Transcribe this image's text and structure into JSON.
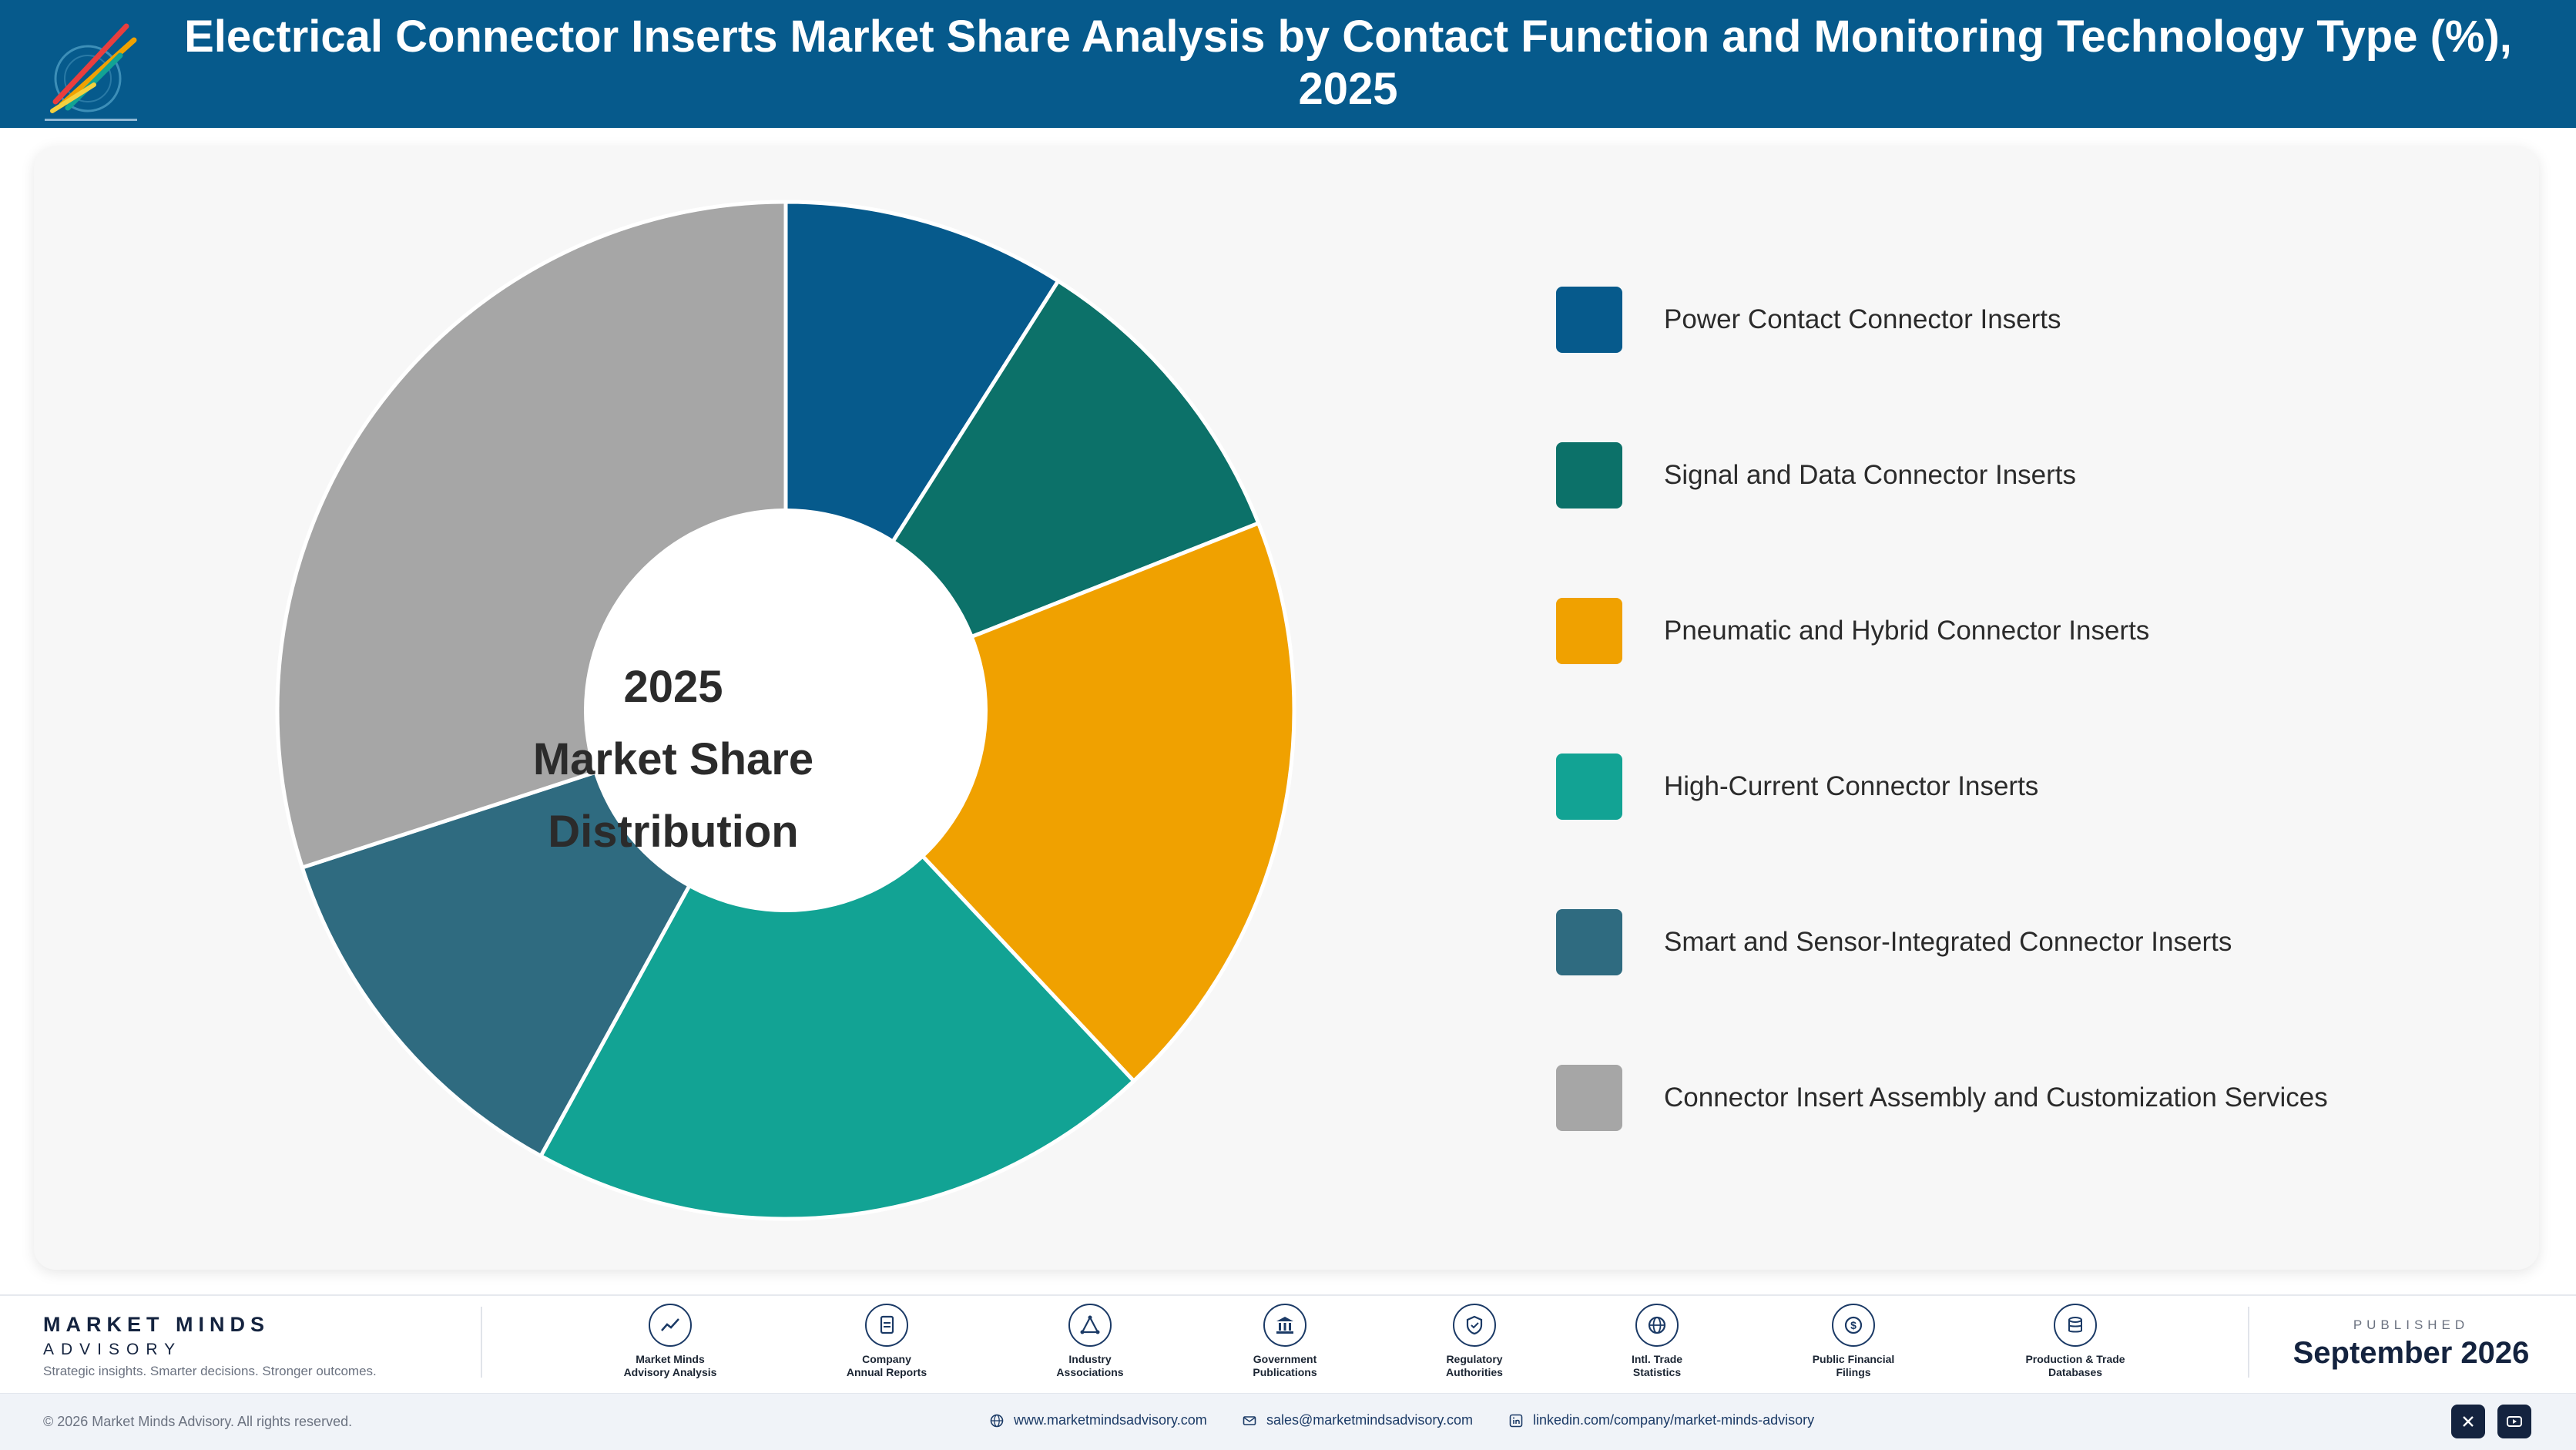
{
  "header": {
    "title": "Electrical Connector Inserts Market Share Analysis by Contact Function and Monitoring Technology Type (%), 2025"
  },
  "chart_data": {
    "type": "pie",
    "title": "Electrical Connector Inserts Market Share Analysis by Contact Function and Monitoring Technology Type (%), 2025",
    "center_label": [
      "2025",
      "Market Share",
      "Distribution"
    ],
    "categories": [
      "Power Contact Connector Inserts",
      "Signal and Data Connector Inserts",
      "Pneumatic and Hybrid Connector Inserts",
      "High-Current Connector Inserts",
      "Smart and Sensor-Integrated Connector Inserts",
      "Connector Insert Assembly and Customization Services"
    ],
    "values": [
      9,
      10,
      19,
      20,
      12,
      30
    ],
    "colors": [
      "#065a8c",
      "#0c7169",
      "#f0a100",
      "#12a394",
      "#2f6b80",
      "#a6a6a6"
    ],
    "donut": true,
    "legend_position": "right"
  },
  "footer": {
    "brand_name": "MARKET MINDS",
    "brand_sub": "ADVISORY",
    "tagline": "Strategic insights. Smarter decisions. Stronger outcomes.",
    "sources": [
      {
        "label1": "Market Minds",
        "label2": "Advisory Analysis",
        "icon": "trend-icon"
      },
      {
        "label1": "Company",
        "label2": "Annual Reports",
        "icon": "document-icon"
      },
      {
        "label1": "Industry",
        "label2": "Associations",
        "icon": "network-icon"
      },
      {
        "label1": "Government",
        "label2": "Publications",
        "icon": "building-icon"
      },
      {
        "label1": "Regulatory",
        "label2": "Authorities",
        "icon": "shield-icon"
      },
      {
        "label1": "Intl. Trade",
        "label2": "Statistics",
        "icon": "globe-icon"
      },
      {
        "label1": "Public Financial",
        "label2": "Filings",
        "icon": "dollar-icon"
      },
      {
        "label1": "Production & Trade",
        "label2": "Databases",
        "icon": "database-icon"
      }
    ],
    "published_label": "PUBLISHED",
    "published_date": "September 2026"
  },
  "bottom_bar": {
    "copyright": "© 2026 Market Minds Advisory. All rights reserved.",
    "website": "www.marketmindsadvisory.com",
    "email": "sales@marketmindsadvisory.com",
    "linkedin": "linkedin.com/company/market-minds-advisory"
  }
}
